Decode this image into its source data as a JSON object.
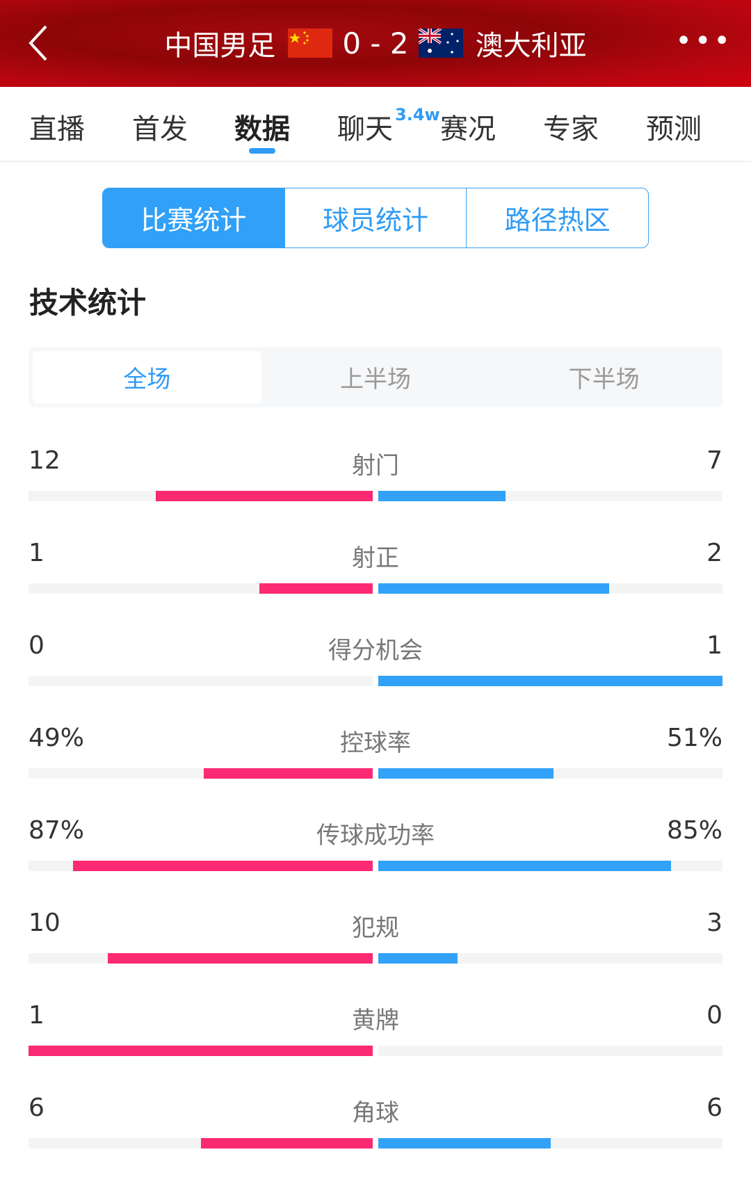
{
  "header": {
    "home_team": "中国男足",
    "away_team": "澳大利亚",
    "score": "0 - 2",
    "home_flag": "china-flag",
    "away_flag": "australia-flag",
    "back_icon": "chevron-left-icon",
    "more_icon": "more-dots-icon"
  },
  "tabs": [
    {
      "label": "直播"
    },
    {
      "label": "首发"
    },
    {
      "label": "数据",
      "active": true
    },
    {
      "label": "聊天",
      "badge": "3.4w"
    },
    {
      "label": "赛况"
    },
    {
      "label": "专家"
    },
    {
      "label": "预测"
    }
  ],
  "segments": [
    {
      "label": "比赛统计",
      "active": true
    },
    {
      "label": "球员统计"
    },
    {
      "label": "路径热区"
    }
  ],
  "section_title": "技术统计",
  "periods": [
    {
      "label": "全场",
      "active": true
    },
    {
      "label": "上半场"
    },
    {
      "label": "下半场"
    }
  ],
  "colors": {
    "home": "#fb2a72",
    "away": "#32a2f8",
    "accent": "#30a0f8",
    "header": "#b80610"
  },
  "stats": [
    {
      "label": "射门",
      "home": "12",
      "away": "7",
      "home_fill": 0.63,
      "away_fill": 0.37
    },
    {
      "label": "射正",
      "home": "1",
      "away": "2",
      "home_fill": 0.33,
      "away_fill": 0.67
    },
    {
      "label": "得分机会",
      "home": "0",
      "away": "1",
      "home_fill": 0,
      "away_fill": 1
    },
    {
      "label": "控球率",
      "home": "49%",
      "away": "51%",
      "home_fill": 0.49,
      "away_fill": 0.51
    },
    {
      "label": "传球成功率",
      "home": "87%",
      "away": "85%",
      "home_fill": 0.87,
      "away_fill": 0.85
    },
    {
      "label": "犯规",
      "home": "10",
      "away": "3",
      "home_fill": 0.77,
      "away_fill": 0.23
    },
    {
      "label": "黄牌",
      "home": "1",
      "away": "0",
      "home_fill": 1,
      "away_fill": 0
    },
    {
      "label": "角球",
      "home": "6",
      "away": "6",
      "home_fill": 0.5,
      "away_fill": 0.5
    }
  ]
}
